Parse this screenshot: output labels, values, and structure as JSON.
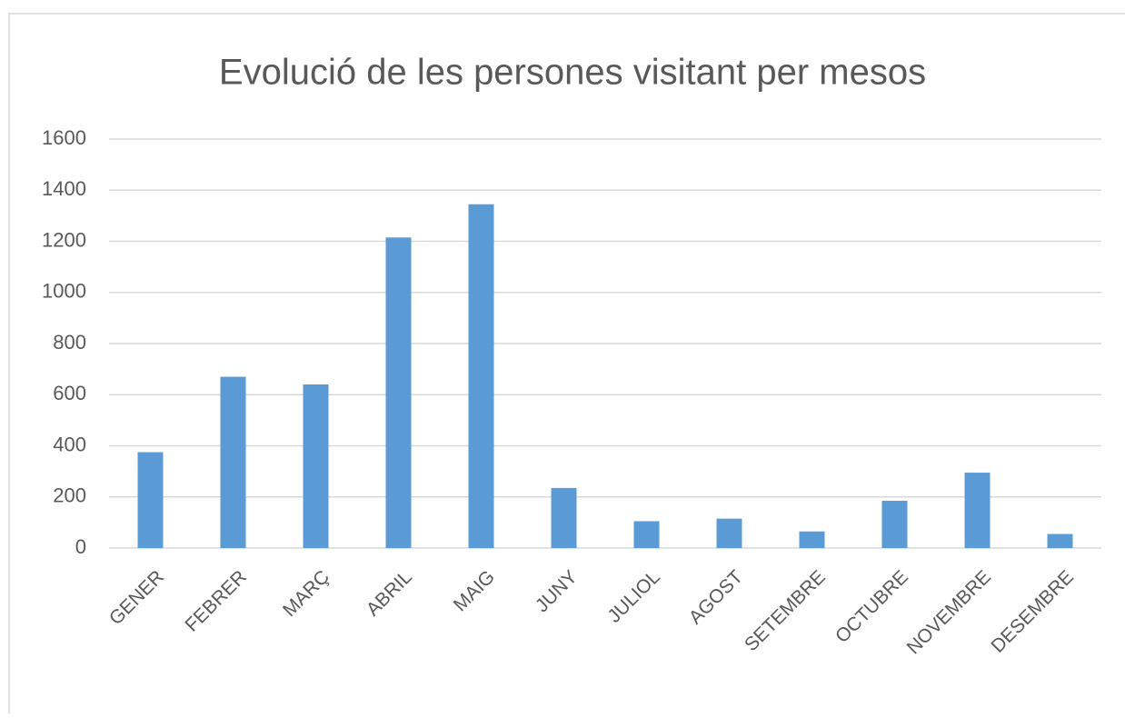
{
  "chart_data": {
    "type": "bar",
    "title": "Evolució de les persones visitant per mesos",
    "categories": [
      "GENER",
      "FEBRER",
      "MARÇ",
      "ABRIL",
      "MAIG",
      "JUNY",
      "JULIOL",
      "AGOST",
      "SETEMBRE",
      "OCTUBRE",
      "NOVEMBRE",
      "DESEMBRE"
    ],
    "values": [
      375,
      670,
      640,
      1215,
      1345,
      235,
      105,
      115,
      65,
      185,
      295,
      55
    ],
    "color": "#5b9bd5",
    "ylim": [
      0,
      1600
    ],
    "yticks": [
      0,
      200,
      400,
      600,
      800,
      1000,
      1200,
      1400,
      1600
    ],
    "grid": true
  }
}
